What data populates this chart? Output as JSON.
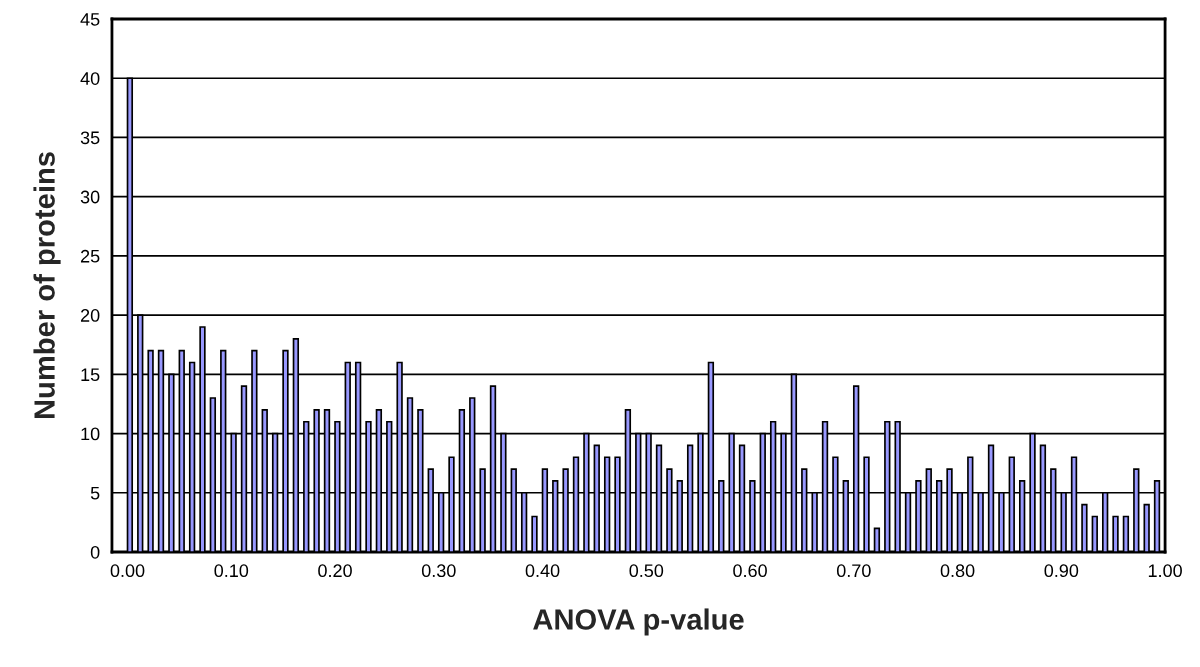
{
  "chart_data": {
    "type": "histogram",
    "xlabel": "ANOVA p-value",
    "ylabel": "Number of proteins",
    "bins": [
      0.0,
      0.01,
      0.02,
      0.03,
      0.04,
      0.05,
      0.06,
      0.07,
      0.08,
      0.09,
      0.1,
      0.11,
      0.12,
      0.13,
      0.14,
      0.15,
      0.16,
      0.17,
      0.18,
      0.19,
      0.2,
      0.21,
      0.22,
      0.23,
      0.24,
      0.25,
      0.26,
      0.27,
      0.28,
      0.29,
      0.3,
      0.31,
      0.32,
      0.33,
      0.34,
      0.35,
      0.36,
      0.37,
      0.38,
      0.39,
      0.4,
      0.41,
      0.42,
      0.43,
      0.44,
      0.45,
      0.46,
      0.47,
      0.48,
      0.49,
      0.5,
      0.51,
      0.52,
      0.53,
      0.54,
      0.55,
      0.56,
      0.57,
      0.58,
      0.59,
      0.6,
      0.61,
      0.62,
      0.63,
      0.64,
      0.65,
      0.66,
      0.67,
      0.68,
      0.69,
      0.7,
      0.71,
      0.72,
      0.73,
      0.74,
      0.75,
      0.76,
      0.77,
      0.78,
      0.79,
      0.8,
      0.81,
      0.82,
      0.83,
      0.84,
      0.85,
      0.86,
      0.87,
      0.88,
      0.89,
      0.9,
      0.91,
      0.92,
      0.93,
      0.94,
      0.95,
      0.96,
      0.97,
      0.98,
      0.99,
      1.0
    ],
    "values": [
      40,
      20,
      17,
      17,
      15,
      17,
      16,
      19,
      13,
      17,
      10,
      14,
      17,
      12,
      10,
      17,
      18,
      11,
      12,
      12,
      11,
      16,
      16,
      11,
      12,
      11,
      16,
      13,
      12,
      7,
      5,
      8,
      12,
      13,
      7,
      14,
      10,
      7,
      5,
      3,
      7,
      6,
      7,
      8,
      10,
      9,
      8,
      8,
      12,
      10,
      10,
      9,
      7,
      6,
      9,
      10,
      16,
      6,
      10,
      9,
      6,
      10,
      11,
      10,
      15,
      7,
      5,
      11,
      8,
      6,
      14,
      8,
      2,
      11,
      11,
      5,
      6,
      7,
      6,
      7,
      5,
      8,
      5,
      9,
      5,
      8,
      6,
      10,
      9,
      7,
      5,
      8,
      4,
      3,
      5,
      3,
      3,
      7,
      4,
      6
    ],
    "color": "#9999ff",
    "xlim": [
      -0.015,
      1.0
    ],
    "xticks": [
      {
        "value": 0.0,
        "label": "0.00"
      },
      {
        "value": 0.1,
        "label": "0.10"
      },
      {
        "value": 0.2,
        "label": "0.20"
      },
      {
        "value": 0.3,
        "label": "0.30"
      },
      {
        "value": 0.4,
        "label": "0.40"
      },
      {
        "value": 0.5,
        "label": "0.50"
      },
      {
        "value": 0.6,
        "label": "0.60"
      },
      {
        "value": 0.7,
        "label": "0.70"
      },
      {
        "value": 0.8,
        "label": "0.80"
      },
      {
        "value": 0.9,
        "label": "0.90"
      },
      {
        "value": 1.0,
        "label": "1.00"
      }
    ],
    "ylim": [
      0,
      45
    ],
    "yticks": [
      0,
      5,
      10,
      15,
      20,
      25,
      30,
      35,
      40,
      45
    ],
    "grid": "y"
  }
}
